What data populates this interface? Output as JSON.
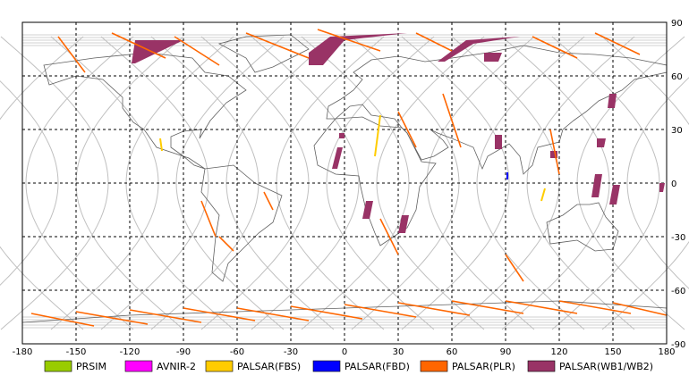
{
  "map": {
    "x_ticks": [
      "-180",
      "-150",
      "-120",
      "-90",
      "-60",
      "-30",
      "0",
      "30",
      "60",
      "90",
      "120",
      "150",
      "180"
    ],
    "y_ticks": [
      "90",
      "60",
      "30",
      "0",
      "-30",
      "-60",
      "-90"
    ],
    "lon_range": [
      -180,
      180
    ],
    "lat_range": [
      -90,
      90
    ],
    "grid": "dashed"
  },
  "legend": {
    "items": [
      {
        "label": "PRSIM",
        "color": "#99cc00"
      },
      {
        "label": "AVNIR-2",
        "color": "#ff00ff"
      },
      {
        "label": "PALSAR(FBS)",
        "color": "#ffcc00"
      },
      {
        "label": "PALSAR(FBD)",
        "color": "#0000ff"
      },
      {
        "label": "PALSAR(PLR)",
        "color": "#ff6600"
      },
      {
        "label": "PALSAR(WB1/WB2)",
        "color": "#993366"
      }
    ]
  },
  "colors": {
    "orbit": "#c0c0c0",
    "coast": "#606060",
    "frame": "#000000"
  }
}
